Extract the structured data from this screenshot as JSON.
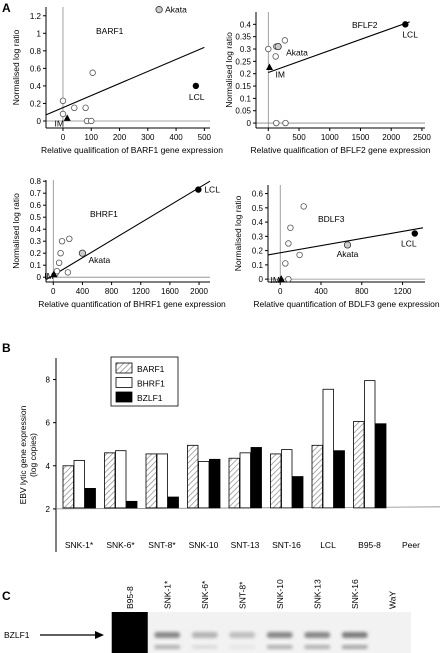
{
  "panels": {
    "A": "A",
    "B": "B",
    "C": "C"
  },
  "colors": {
    "ink": "#000000",
    "open_point": "#ffffff",
    "akata_point": "#cccccc",
    "hatch": "#888888"
  },
  "chart_data": [
    {
      "type": "scatter",
      "title": "BARF1",
      "xlabel": "Relative qualification of BARF1 gene expression",
      "ylabel": "Normalised log ratio",
      "xlim": [
        -60,
        520
      ],
      "ylim": [
        -0.08,
        1.3
      ],
      "xticks": [
        0,
        100,
        200,
        300,
        400,
        500
      ],
      "yticks": [
        0,
        0.2,
        0.4,
        0.6,
        0.8,
        1,
        1.2
      ],
      "ytick_labels": [
        "0",
        "0.2",
        "0.4",
        "0.6",
        "0.8",
        "1",
        "1.2"
      ],
      "fit_line": [
        [
          -60,
          0.07
        ],
        [
          500,
          0.84
        ]
      ],
      "points": [
        {
          "x": 0,
          "y": 0.23,
          "kind": "open"
        },
        {
          "x": 0,
          "y": 0.08,
          "kind": "open"
        },
        {
          "x": 40,
          "y": 0.15,
          "kind": "open"
        },
        {
          "x": 80,
          "y": 0.15,
          "kind": "open"
        },
        {
          "x": 85,
          "y": 0,
          "kind": "open"
        },
        {
          "x": 100,
          "y": 0,
          "kind": "open"
        },
        {
          "x": 105,
          "y": 0.55,
          "kind": "open"
        },
        {
          "x": 15,
          "y": 0.03,
          "kind": "triangle",
          "label": "IM"
        },
        {
          "x": 340,
          "y": 1.27,
          "kind": "akata",
          "label": "Akata"
        },
        {
          "x": 470,
          "y": 0.4,
          "kind": "filled",
          "label": "LCL"
        }
      ]
    },
    {
      "type": "scatter",
      "title": "BFLF2",
      "xlabel": "Relative qualification of BFLF2 gene expression",
      "ylabel": "Normalised log ratio",
      "xlim": [
        -200,
        2550
      ],
      "ylim": [
        -0.02,
        0.45
      ],
      "xticks": [
        0,
        500,
        1000,
        1500,
        2000,
        2500
      ],
      "yticks": [
        0,
        0.05,
        0.1,
        0.15,
        0.2,
        0.25,
        0.3,
        0.35,
        0.4
      ],
      "ytick_labels": [
        "0",
        "0.05",
        "0.1",
        "0.15",
        "0.2",
        "0.25",
        "0.3",
        "0.35",
        "0.4"
      ],
      "fit_line": [
        [
          0,
          0.205
        ],
        [
          2300,
          0.41
        ]
      ],
      "points": [
        {
          "x": 0,
          "y": 0.3,
          "kind": "open"
        },
        {
          "x": 130,
          "y": 0.31,
          "kind": "open"
        },
        {
          "x": 160,
          "y": 0.31,
          "kind": "open"
        },
        {
          "x": 120,
          "y": 0.27,
          "kind": "open"
        },
        {
          "x": 270,
          "y": 0.335,
          "kind": "open"
        },
        {
          "x": 130,
          "y": 0,
          "kind": "open"
        },
        {
          "x": 280,
          "y": 0,
          "kind": "open"
        },
        {
          "x": 20,
          "y": 0.225,
          "kind": "triangle",
          "label": "IM"
        },
        {
          "x": 160,
          "y": 0.31,
          "kind": "akata",
          "label": "Akata"
        },
        {
          "x": 2230,
          "y": 0.4,
          "kind": "filled",
          "label": "LCL"
        }
      ]
    },
    {
      "type": "scatter",
      "title": "BHRF1",
      "xlabel": "Relative quantification of BHRF1 gene expression",
      "ylabel": "Normalised log ratio",
      "xlim": [
        -100,
        2150
      ],
      "ylim": [
        -0.04,
        0.81
      ],
      "xticks": [
        0,
        400,
        800,
        1200,
        1600,
        2000
      ],
      "yticks": [
        0,
        0.1,
        0.2,
        0.3,
        0.4,
        0.5,
        0.6,
        0.7,
        0.8
      ],
      "ytick_labels": [
        "0",
        "0.1",
        "0.2",
        "0.3",
        "0.4",
        "0.5",
        "0.6",
        "0.7",
        "0.8"
      ],
      "fit_line": [
        [
          -100,
          -0.02
        ],
        [
          2150,
          0.8
        ]
      ],
      "points": [
        {
          "x": 30,
          "y": 0.03,
          "kind": "open"
        },
        {
          "x": 50,
          "y": 0.05,
          "kind": "open"
        },
        {
          "x": 80,
          "y": 0.12,
          "kind": "open"
        },
        {
          "x": 100,
          "y": 0.2,
          "kind": "open"
        },
        {
          "x": 120,
          "y": 0.3,
          "kind": "open"
        },
        {
          "x": 220,
          "y": 0.32,
          "kind": "open"
        },
        {
          "x": 200,
          "y": 0.04,
          "kind": "open"
        },
        {
          "x": 10,
          "y": 0.02,
          "kind": "triangle",
          "label": "IM"
        },
        {
          "x": 400,
          "y": 0.2,
          "kind": "akata",
          "label": "Akata"
        },
        {
          "x": 1990,
          "y": 0.73,
          "kind": "filled",
          "label": "LCL"
        }
      ]
    },
    {
      "type": "scatter",
      "title": "BDLF3",
      "xlabel": "Relative quantification of BDLF3 gene expression",
      "ylabel": "Normalised log ratio",
      "xlim": [
        -120,
        1420
      ],
      "ylim": [
        -0.02,
        0.66
      ],
      "xticks": [
        0,
        400,
        800,
        1200
      ],
      "yticks": [
        0,
        0.1,
        0.2,
        0.3,
        0.4,
        0.5,
        0.6
      ],
      "ytick_labels": [
        "0",
        "0.1",
        "0.2",
        "0.3",
        "0.4",
        "0.5",
        "0.6"
      ],
      "fit_line": [
        [
          -120,
          0.17
        ],
        [
          1400,
          0.36
        ]
      ],
      "points": [
        {
          "x": 50,
          "y": 0.11,
          "kind": "open"
        },
        {
          "x": 80,
          "y": 0.25,
          "kind": "open"
        },
        {
          "x": 100,
          "y": 0.36,
          "kind": "open"
        },
        {
          "x": 80,
          "y": 0.0,
          "kind": "open"
        },
        {
          "x": 190,
          "y": 0.17,
          "kind": "open"
        },
        {
          "x": 230,
          "y": 0.51,
          "kind": "open"
        },
        {
          "x": 10,
          "y": 0,
          "kind": "triangle",
          "label": "IM"
        },
        {
          "x": 660,
          "y": 0.24,
          "kind": "akata",
          "label": "Akata"
        },
        {
          "x": 1320,
          "y": 0.32,
          "kind": "filled",
          "label": "LCL"
        }
      ]
    },
    {
      "type": "bar",
      "ylabel_lines": [
        "EBV lytic gene expression",
        "(log copies)"
      ],
      "ylim": [
        0,
        9
      ],
      "yticks": [
        2,
        4,
        6,
        8
      ],
      "baseline": 2,
      "categories": [
        "SNK-1*",
        "SNK-6*",
        "SNT-8*",
        "SNK-10",
        "SNT-13",
        "SNT-16",
        "LCL",
        "B95-8",
        "Peer"
      ],
      "series": [
        {
          "name": "BARF1",
          "fill": "hatch",
          "values": [
            4.0,
            4.6,
            4.55,
            4.95,
            4.35,
            4.55,
            4.95,
            6.05,
            null
          ]
        },
        {
          "name": "BHRF1",
          "fill": "open",
          "values": [
            4.25,
            4.7,
            4.55,
            4.2,
            4.6,
            4.75,
            7.55,
            7.95,
            null
          ]
        },
        {
          "name": "BZLF1",
          "fill": "filled",
          "values": [
            2.95,
            2.35,
            2.55,
            4.3,
            4.85,
            3.5,
            4.7,
            5.95,
            null
          ]
        }
      ]
    }
  ],
  "gel": {
    "lanes": [
      "B95-8",
      "SNK-1*",
      "SNK-6*",
      "SNT-8*",
      "SNK-10",
      "SNK-13",
      "SNK-16",
      "WaY"
    ],
    "band_intensity": [
      1.0,
      0.55,
      0.35,
      0.3,
      0.55,
      0.55,
      0.6,
      0.0
    ],
    "label": "BZLF1"
  }
}
